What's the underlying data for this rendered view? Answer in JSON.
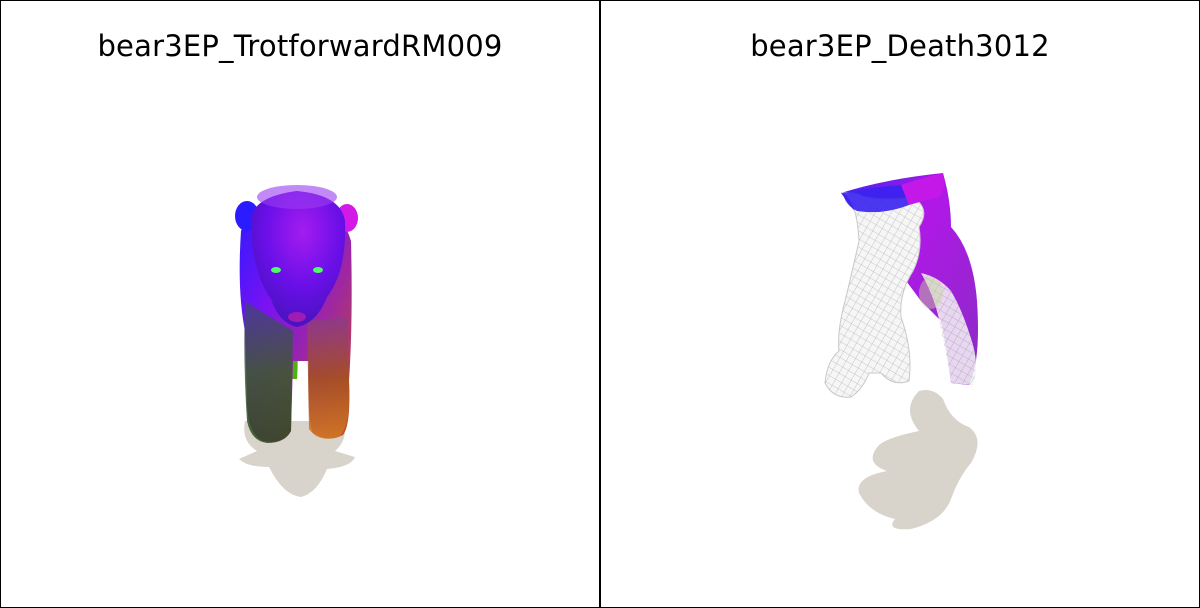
{
  "panels": [
    {
      "title": "bear3EP_TrotforwardRM009"
    },
    {
      "title": "bear3EP_Death3012"
    }
  ],
  "colors": {
    "shadow": "#d8d4cb",
    "mesh_wire": "#e2e2e2",
    "accent_blue": "#3d22f0",
    "accent_magenta": "#c414e8",
    "accent_green": "#3a6a1c",
    "accent_orange": "#d06a18"
  }
}
